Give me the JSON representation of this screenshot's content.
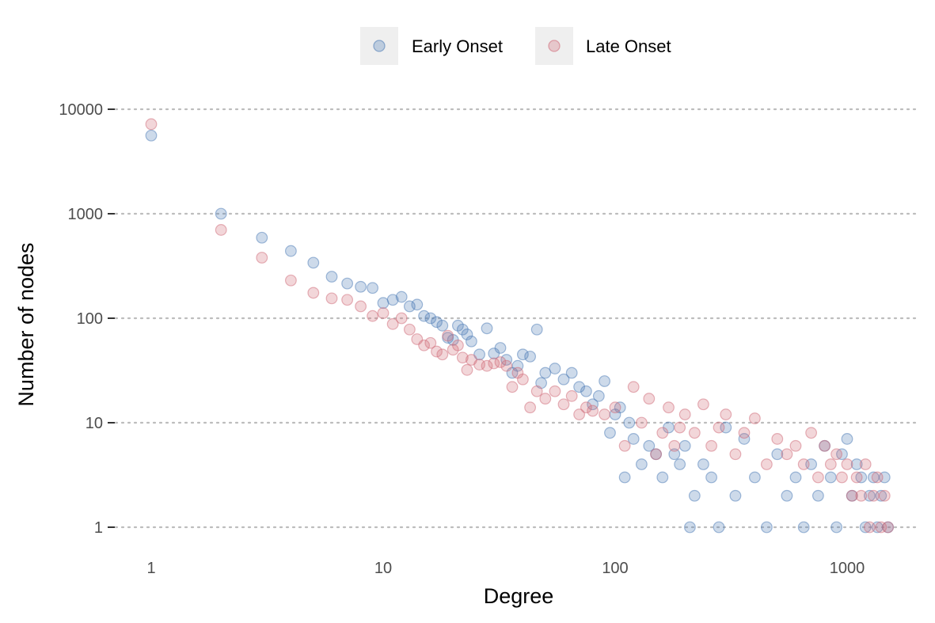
{
  "chart_data": {
    "type": "scatter",
    "xlabel": "Degree",
    "ylabel": "Number of nodes",
    "x_scale": "log10",
    "y_scale": "log10",
    "xlim": [
      0.7,
      2150
    ],
    "ylim": [
      0.65,
      14000
    ],
    "x_ticks": [
      1,
      10,
      100,
      1000
    ],
    "x_tick_labels": [
      "1",
      "10",
      "100",
      "1000"
    ],
    "y_ticks": [
      1,
      10,
      100,
      1000,
      10000
    ],
    "y_tick_labels": [
      "1",
      "10",
      "100",
      "1000",
      "10000"
    ],
    "grid": "horizontal dotted at major y ticks",
    "legend_position": "top",
    "series": [
      {
        "name": "Early Onset",
        "color": "#4a7ab5",
        "points": [
          [
            1,
            5600
          ],
          [
            2,
            1000
          ],
          [
            3,
            590
          ],
          [
            4,
            440
          ],
          [
            5,
            340
          ],
          [
            6,
            250
          ],
          [
            7,
            215
          ],
          [
            8,
            200
          ],
          [
            9,
            195
          ],
          [
            10,
            140
          ],
          [
            11,
            150
          ],
          [
            12,
            160
          ],
          [
            13,
            130
          ],
          [
            14,
            135
          ],
          [
            15,
            105
          ],
          [
            16,
            100
          ],
          [
            17,
            92
          ],
          [
            18,
            85
          ],
          [
            19,
            65
          ],
          [
            20,
            62
          ],
          [
            21,
            85
          ],
          [
            22,
            78
          ],
          [
            23,
            70
          ],
          [
            24,
            60
          ],
          [
            26,
            45
          ],
          [
            28,
            80
          ],
          [
            30,
            46
          ],
          [
            32,
            52
          ],
          [
            34,
            40
          ],
          [
            36,
            30
          ],
          [
            38,
            35
          ],
          [
            40,
            45
          ],
          [
            43,
            43
          ],
          [
            46,
            78
          ],
          [
            48,
            24
          ],
          [
            50,
            30
          ],
          [
            55,
            33
          ],
          [
            60,
            26
          ],
          [
            65,
            30
          ],
          [
            70,
            22
          ],
          [
            75,
            20
          ],
          [
            80,
            15
          ],
          [
            85,
            18
          ],
          [
            90,
            25
          ],
          [
            95,
            8
          ],
          [
            100,
            12
          ],
          [
            105,
            14
          ],
          [
            110,
            3
          ],
          [
            115,
            10
          ],
          [
            120,
            7
          ],
          [
            130,
            4
          ],
          [
            140,
            6
          ],
          [
            150,
            5
          ],
          [
            160,
            3
          ],
          [
            170,
            9
          ],
          [
            180,
            5
          ],
          [
            190,
            4
          ],
          [
            200,
            6
          ],
          [
            210,
            1
          ],
          [
            220,
            2
          ],
          [
            240,
            4
          ],
          [
            260,
            3
          ],
          [
            280,
            1
          ],
          [
            300,
            9
          ],
          [
            330,
            2
          ],
          [
            360,
            7
          ],
          [
            400,
            3
          ],
          [
            450,
            1
          ],
          [
            500,
            5
          ],
          [
            550,
            2
          ],
          [
            600,
            3
          ],
          [
            650,
            1
          ],
          [
            700,
            4
          ],
          [
            750,
            2
          ],
          [
            800,
            6
          ],
          [
            850,
            3
          ],
          [
            900,
            1
          ],
          [
            950,
            5
          ],
          [
            1000,
            7
          ],
          [
            1050,
            2
          ],
          [
            1100,
            4
          ],
          [
            1150,
            3
          ],
          [
            1200,
            1
          ],
          [
            1250,
            2
          ],
          [
            1300,
            3
          ],
          [
            1350,
            1
          ],
          [
            1400,
            2
          ],
          [
            1450,
            3
          ],
          [
            1500,
            1
          ]
        ]
      },
      {
        "name": "Late Onset",
        "color": "#d06a78",
        "points": [
          [
            1,
            7200
          ],
          [
            2,
            700
          ],
          [
            3,
            380
          ],
          [
            4,
            230
          ],
          [
            5,
            175
          ],
          [
            6,
            155
          ],
          [
            7,
            150
          ],
          [
            8,
            130
          ],
          [
            9,
            105
          ],
          [
            10,
            112
          ],
          [
            11,
            88
          ],
          [
            12,
            100
          ],
          [
            13,
            78
          ],
          [
            14,
            63
          ],
          [
            15,
            55
          ],
          [
            16,
            58
          ],
          [
            17,
            48
          ],
          [
            18,
            45
          ],
          [
            19,
            68
          ],
          [
            20,
            50
          ],
          [
            21,
            55
          ],
          [
            22,
            42
          ],
          [
            23,
            32
          ],
          [
            24,
            40
          ],
          [
            26,
            36
          ],
          [
            28,
            35
          ],
          [
            30,
            37
          ],
          [
            32,
            38
          ],
          [
            34,
            35
          ],
          [
            36,
            22
          ],
          [
            38,
            30
          ],
          [
            40,
            26
          ],
          [
            43,
            14
          ],
          [
            46,
            20
          ],
          [
            50,
            17
          ],
          [
            55,
            20
          ],
          [
            60,
            15
          ],
          [
            65,
            18
          ],
          [
            70,
            12
          ],
          [
            75,
            14
          ],
          [
            80,
            13
          ],
          [
            90,
            12
          ],
          [
            100,
            14
          ],
          [
            110,
            6
          ],
          [
            120,
            22
          ],
          [
            130,
            10
          ],
          [
            140,
            17
          ],
          [
            150,
            5
          ],
          [
            160,
            8
          ],
          [
            170,
            14
          ],
          [
            180,
            6
          ],
          [
            190,
            9
          ],
          [
            200,
            12
          ],
          [
            220,
            8
          ],
          [
            240,
            15
          ],
          [
            260,
            6
          ],
          [
            280,
            9
          ],
          [
            300,
            12
          ],
          [
            330,
            5
          ],
          [
            360,
            8
          ],
          [
            400,
            11
          ],
          [
            450,
            4
          ],
          [
            500,
            7
          ],
          [
            550,
            5
          ],
          [
            600,
            6
          ],
          [
            650,
            4
          ],
          [
            700,
            8
          ],
          [
            750,
            3
          ],
          [
            800,
            6
          ],
          [
            850,
            4
          ],
          [
            900,
            5
          ],
          [
            950,
            3
          ],
          [
            1000,
            4
          ],
          [
            1050,
            2
          ],
          [
            1100,
            3
          ],
          [
            1150,
            2
          ],
          [
            1200,
            4
          ],
          [
            1250,
            1
          ],
          [
            1300,
            2
          ],
          [
            1350,
            3
          ],
          [
            1400,
            1
          ],
          [
            1450,
            2
          ],
          [
            1500,
            1
          ]
        ]
      }
    ]
  }
}
